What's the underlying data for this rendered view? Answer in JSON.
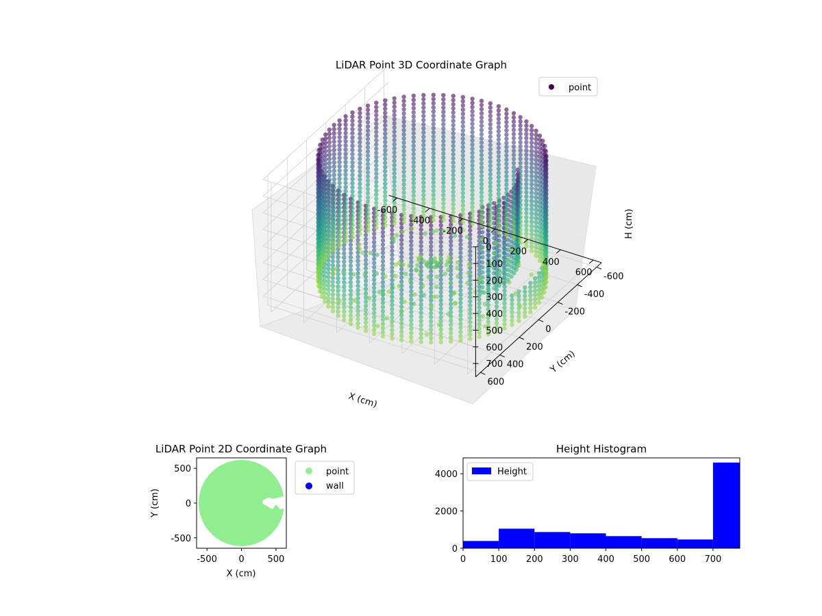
{
  "chart_data": [
    {
      "type": "scatter",
      "projection": "3d",
      "title": "LiDAR Point 3D Coordinate Graph",
      "xlabel": "X (cm)",
      "ylabel": "Y (cm)",
      "zlabel": "H (cm)",
      "x_ticks": [
        -600,
        -400,
        -200,
        0,
        200,
        400,
        600
      ],
      "y_ticks": [
        -600,
        -400,
        -200,
        0,
        200,
        400,
        600
      ],
      "z_ticks": [
        0,
        100,
        200,
        300,
        400,
        500,
        600,
        700
      ],
      "xlim": [
        -650,
        650
      ],
      "ylim": [
        -650,
        650
      ],
      "zlim": [
        780,
        0
      ],
      "z_inverted": true,
      "colormap": "viridis",
      "legend": {
        "position": "top-right",
        "entries": [
          {
            "label": "point",
            "color": "#440154"
          }
        ]
      },
      "series": [
        {
          "name": "point",
          "shape": "cylindrical wall",
          "radius": 600,
          "height_range": [
            0,
            770
          ],
          "gap_angle_deg_range": [
            -25,
            20
          ],
          "inner_partial_wall_radius": 350
        }
      ]
    },
    {
      "type": "scatter",
      "title": "LiDAR Point 2D Coordinate Graph",
      "xlabel": "X (cm)",
      "ylabel": "Y (cm)",
      "x_ticks": [
        -500,
        0,
        500
      ],
      "y_ticks": [
        -500,
        0,
        500
      ],
      "xlim": [
        -650,
        650
      ],
      "ylim": [
        -650,
        650
      ],
      "legend": {
        "position": "outside right",
        "entries": [
          {
            "label": "point",
            "color": "#90ee90"
          },
          {
            "label": "wall",
            "color": "#0000ee"
          }
        ]
      },
      "series": [
        {
          "name": "point",
          "color": "#90ee90",
          "shape": "filled disc",
          "radius": 620
        },
        {
          "name": "wall",
          "color": "#0000ee",
          "points": []
        }
      ]
    },
    {
      "type": "bar",
      "subtype": "histogram",
      "title": "Height Histogram",
      "x_ticks": [
        0,
        100,
        200,
        300,
        400,
        500,
        600,
        700
      ],
      "y_ticks": [
        0,
        2000,
        4000
      ],
      "xlim": [
        0,
        775
      ],
      "ylim": [
        0,
        4850
      ],
      "bin_edges": [
        0,
        100,
        200,
        300,
        400,
        500,
        600,
        700,
        775
      ],
      "values": [
        390,
        1050,
        870,
        800,
        650,
        540,
        470,
        4600
      ],
      "legend": {
        "position": "top-left",
        "entries": [
          {
            "label": "Height",
            "color": "#0000ff"
          }
        ]
      },
      "series": [
        {
          "name": "Height",
          "color": "#0000ff"
        }
      ]
    }
  ]
}
